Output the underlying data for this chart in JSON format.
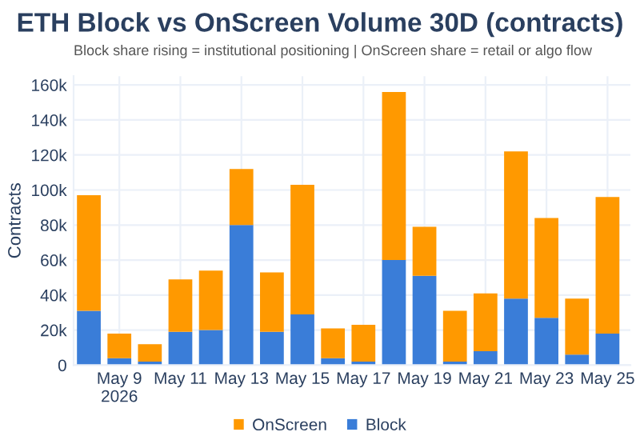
{
  "chart_data": {
    "type": "bar",
    "stacked": true,
    "title": "ETH Block vs OnScreen Volume 30D (contracts)",
    "subtitle": "Block share rising = institutional positioning | OnScreen share = retail or algo flow",
    "ylabel": "Contracts",
    "x": [
      "2026-05-08",
      "2026-05-09",
      "2026-05-10",
      "2026-05-11",
      "2026-05-12",
      "2026-05-13",
      "2026-05-14",
      "2026-05-15",
      "2026-05-16",
      "2026-05-17",
      "2026-05-18",
      "2026-05-19",
      "2026-05-20",
      "2026-05-21",
      "2026-05-22",
      "2026-05-23",
      "2026-05-24",
      "2026-05-25"
    ],
    "series": [
      {
        "name": "Block",
        "color": "#3a7dd8",
        "values": [
          31000,
          4000,
          2000,
          19000,
          20000,
          80000,
          19000,
          29000,
          4000,
          2000,
          60000,
          51000,
          2000,
          8000,
          38000,
          27000,
          6000,
          18000
        ]
      },
      {
        "name": "OnScreen",
        "color": "#ff9900",
        "values": [
          66000,
          14000,
          10000,
          30000,
          34000,
          32000,
          34000,
          74000,
          17000,
          21000,
          96000,
          28000,
          29000,
          33000,
          84000,
          57000,
          32000,
          78000
        ]
      }
    ],
    "xlim": [
      "2026-05-07T12:00",
      "2026-05-25T18:00"
    ],
    "xticks": [
      {
        "value": "2026-05-09",
        "label": "May 9\n2026"
      },
      {
        "value": "2026-05-11",
        "label": "May 11"
      },
      {
        "value": "2026-05-13",
        "label": "May 13"
      },
      {
        "value": "2026-05-15",
        "label": "May 15"
      },
      {
        "value": "2026-05-17",
        "label": "May 17"
      },
      {
        "value": "2026-05-19",
        "label": "May 19"
      },
      {
        "value": "2026-05-21",
        "label": "May 21"
      },
      {
        "value": "2026-05-23",
        "label": "May 23"
      },
      {
        "value": "2026-05-25",
        "label": "May 25"
      }
    ],
    "ylim": [
      0,
      165000
    ],
    "yticks": [
      0,
      {
        "value": 20000,
        "label": "20k"
      },
      {
        "value": 40000,
        "label": "40k"
      },
      {
        "value": 60000,
        "label": "60k"
      },
      {
        "value": 80000,
        "label": "80k"
      },
      {
        "value": 100000,
        "label": "100k"
      },
      {
        "value": 120000,
        "label": "120k"
      },
      {
        "value": 140000,
        "label": "140k"
      },
      {
        "value": 160000,
        "label": "160k"
      }
    ],
    "grid": true,
    "legend": "bottom"
  }
}
